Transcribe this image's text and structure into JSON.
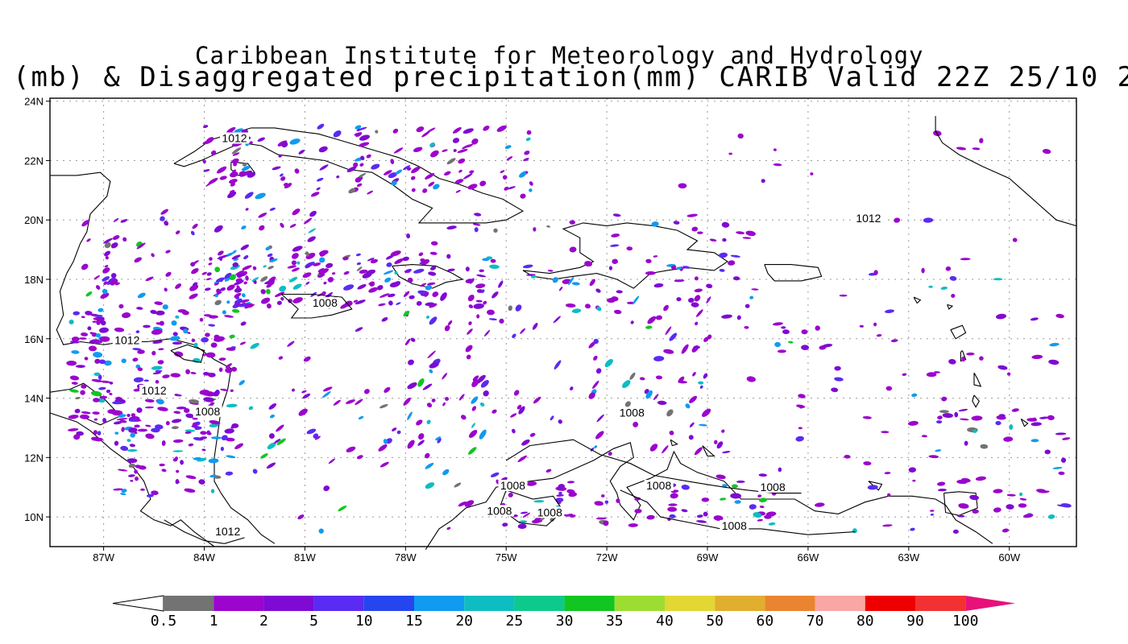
{
  "title": {
    "line1": "Caribbean Institute for Meteorology and Hydrology",
    "line2": "(mb) & Disaggregated precipitation(mm) CARIB Valid 22Z 25/10 2"
  },
  "map": {
    "lat_labels": [
      "24N",
      "22N",
      "20N",
      "18N",
      "16N",
      "14N",
      "12N",
      "10N"
    ],
    "lon_labels": [
      "87W",
      "84W",
      "81W",
      "78W",
      "75W",
      "72W",
      "69W",
      "66W",
      "63W",
      "60W"
    ],
    "contour_labels": [
      {
        "text": "1012",
        "lon": -83.1,
        "lat": 22.65
      },
      {
        "text": "1012",
        "lon": -64.2,
        "lat": 19.95
      },
      {
        "text": "1008",
        "lon": -80.4,
        "lat": 17.1
      },
      {
        "text": "1012",
        "lon": -86.3,
        "lat": 15.85
      },
      {
        "text": "1012",
        "lon": -85.5,
        "lat": 14.15
      },
      {
        "text": "1008",
        "lon": -83.9,
        "lat": 13.45
      },
      {
        "text": "1008",
        "lon": -71.25,
        "lat": 13.4
      },
      {
        "text": "1008",
        "lon": -74.8,
        "lat": 10.95
      },
      {
        "text": "1008",
        "lon": -75.2,
        "lat": 10.1
      },
      {
        "text": "1008",
        "lon": -73.7,
        "lat": 10.05
      },
      {
        "text": "1008",
        "lon": -70.45,
        "lat": 10.95
      },
      {
        "text": "1008",
        "lon": -67.05,
        "lat": 10.9
      },
      {
        "text": "1008",
        "lon": -68.2,
        "lat": 9.6
      },
      {
        "text": "1012",
        "lon": -83.3,
        "lat": 9.4
      }
    ]
  },
  "colorbar": {
    "labels": [
      "0.5",
      "1",
      "2",
      "5",
      "10",
      "15",
      "20",
      "25",
      "30",
      "35",
      "40",
      "50",
      "60",
      "70",
      "80",
      "90",
      "100"
    ],
    "colors": [
      "#737373",
      "#9b05cd",
      "#7f0ad3",
      "#5a2bf2",
      "#2546ee",
      "#0f9bef",
      "#0ebdc2",
      "#0ec98c",
      "#11c621",
      "#9ddd31",
      "#e2d733",
      "#e2ae30",
      "#eb8430",
      "#f9a6a5",
      "#ef0000",
      "#f23232"
    ],
    "top_color": "#e7117a"
  }
}
